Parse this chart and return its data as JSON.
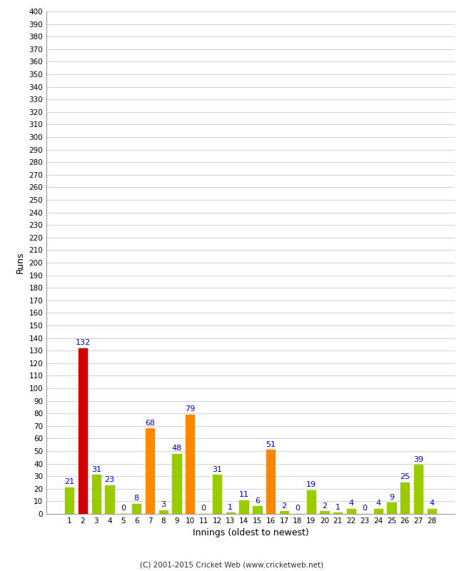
{
  "innings": [
    1,
    2,
    3,
    4,
    5,
    6,
    7,
    8,
    9,
    10,
    11,
    12,
    13,
    14,
    15,
    16,
    17,
    18,
    19,
    20,
    21,
    22,
    23,
    24,
    25,
    26,
    27,
    28
  ],
  "values": [
    21,
    132,
    31,
    23,
    0,
    8,
    68,
    3,
    48,
    79,
    0,
    31,
    1,
    11,
    6,
    51,
    2,
    0,
    19,
    2,
    1,
    4,
    0,
    4,
    9,
    25,
    39,
    4
  ],
  "colors": [
    "#99cc00",
    "#cc0000",
    "#99cc00",
    "#99cc00",
    "#99cc00",
    "#99cc00",
    "#ff8800",
    "#99cc00",
    "#99cc00",
    "#ff8800",
    "#99cc00",
    "#99cc00",
    "#99cc00",
    "#99cc00",
    "#99cc00",
    "#ff8800",
    "#99cc00",
    "#99cc00",
    "#99cc00",
    "#99cc00",
    "#99cc00",
    "#99cc00",
    "#99cc00",
    "#99cc00",
    "#99cc00",
    "#99cc00",
    "#99cc00",
    "#99cc00"
  ],
  "ylabel": "Runs",
  "xlabel": "Innings (oldest to newest)",
  "ylim": [
    0,
    400
  ],
  "ytick_step": 10,
  "footer": "(C) 2001-2015 Cricket Web (www.cricketweb.net)",
  "value_color": "#0000cc",
  "background_color": "#ffffff",
  "grid_color": "#cccccc",
  "label_fontsize": 8,
  "tick_fontsize": 7.5,
  "bar_width": 0.65
}
